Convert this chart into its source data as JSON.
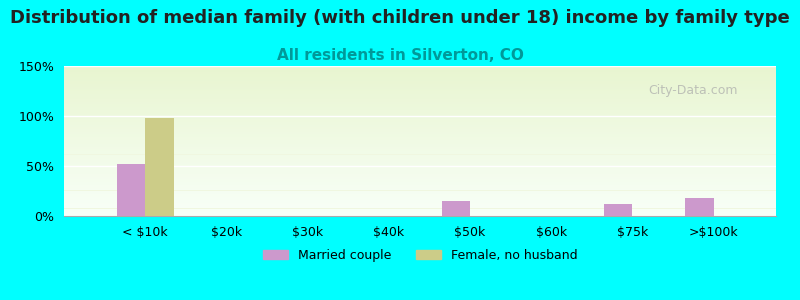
{
  "title": "Distribution of median family (with children under 18) income by family type",
  "subtitle": "All residents in Silverton, CO",
  "categories": [
    "< $10k",
    "$20k",
    "$30k",
    "$40k",
    "$50k",
    "$60k",
    "$75k",
    ">$100k"
  ],
  "married_couple": [
    52,
    0,
    0,
    0,
    15,
    0,
    12,
    18
  ],
  "female_no_husband": [
    98,
    0,
    0,
    0,
    0,
    0,
    0,
    0
  ],
  "married_color": "#cc99cc",
  "female_color": "#cccc88",
  "background_color": "#00ffff",
  "plot_bg_top": "#f0f7e0",
  "plot_bg_bottom": "#ffffff",
  "ylim": [
    0,
    150
  ],
  "yticks": [
    0,
    50,
    100,
    150
  ],
  "ytick_labels": [
    "0%",
    "50%",
    "100%",
    "150%"
  ],
  "bar_width": 0.35,
  "title_fontsize": 13,
  "subtitle_fontsize": 11,
  "subtitle_color": "#009999",
  "watermark": "City-Data.com"
}
